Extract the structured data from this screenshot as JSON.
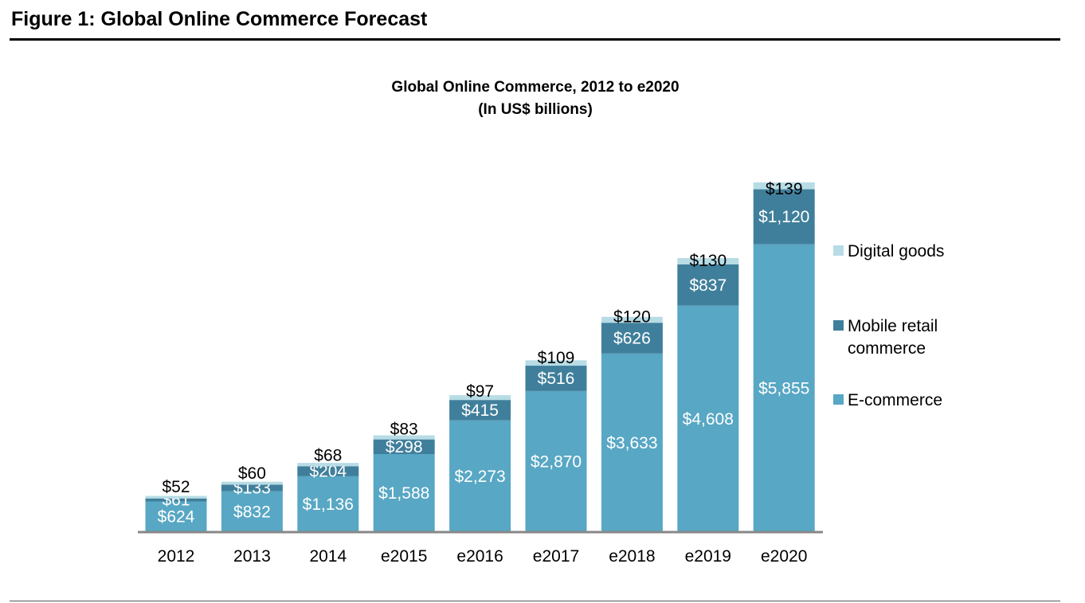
{
  "figure_title": "Figure 1: Global Online Commerce Forecast",
  "chart_data": {
    "type": "bar",
    "stacked": true,
    "title": "Global Online Commerce, 2012 to e2020",
    "subtitle": "(In US$ billions)",
    "categories": [
      "2012",
      "2013",
      "2014",
      "e2015",
      "e2016",
      "e2017",
      "e2018",
      "e2019",
      "e2020"
    ],
    "series": [
      {
        "name": "E-commerce",
        "color": "#58a7c4",
        "values": [
          624,
          832,
          1136,
          1588,
          2273,
          2870,
          3633,
          4608,
          5855
        ],
        "labels": [
          "$624",
          "$832",
          "$1,136",
          "$1,588",
          "$2,273",
          "$2,870",
          "$3,633",
          "$4,608",
          "$5,855"
        ]
      },
      {
        "name": "Mobile retail commerce",
        "color": "#407f9b",
        "values": [
          61,
          133,
          204,
          298,
          415,
          516,
          626,
          837,
          1120
        ],
        "labels": [
          "$61",
          "$133",
          "$204",
          "$298",
          "$415",
          "$516",
          "$626",
          "$837",
          "$1,120"
        ]
      },
      {
        "name": "Digital goods",
        "color": "#b7dce6",
        "values": [
          52,
          60,
          68,
          83,
          97,
          109,
          120,
          130,
          139
        ],
        "labels": [
          "$52",
          "$60",
          "$68",
          "$83",
          "$97",
          "$109",
          "$120",
          "$130",
          "$139"
        ]
      }
    ],
    "legend_labels": [
      "Digital goods",
      [
        "Mobile retail",
        "commerce"
      ],
      " E-commerce"
    ],
    "legend_placement": "right",
    "grid": false,
    "ylim": [
      0,
      7114
    ]
  }
}
